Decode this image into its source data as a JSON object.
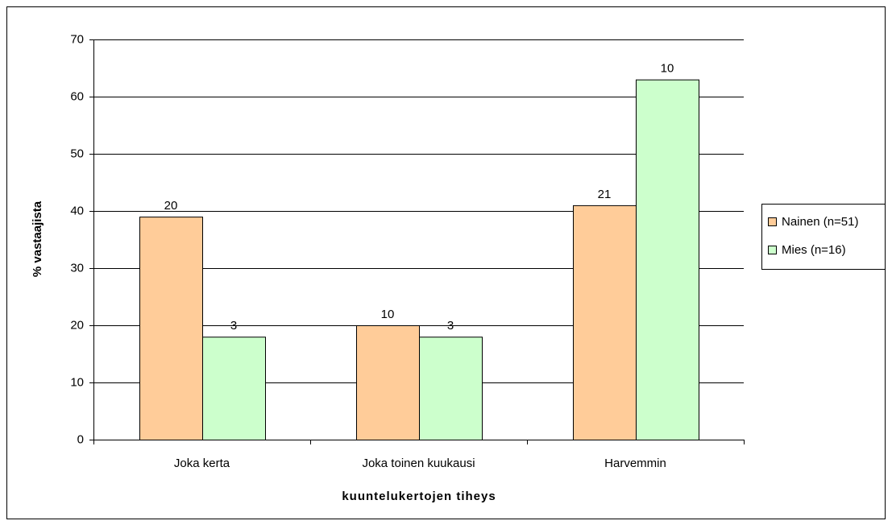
{
  "chart_data": {
    "type": "bar",
    "y_label": "% vastaajista",
    "x_label": "kuuntelukertojen tiheys",
    "categories": [
      "Joka kerta",
      "Joka toinen kuukausi",
      "Harvemmin"
    ],
    "series": [
      {
        "name": "Nainen (n=51)",
        "color": "#ffcc99",
        "values": [
          39,
          20,
          41
        ],
        "counts": [
          20,
          10,
          21
        ]
      },
      {
        "name": "Mies (n=16)",
        "color": "#ccffcc",
        "values": [
          18,
          18,
          63
        ],
        "counts": [
          3,
          3,
          10
        ]
      }
    ],
    "ylim": [
      0,
      70
    ],
    "yticks": [
      0,
      10,
      20,
      30,
      40,
      50,
      60,
      70
    ],
    "grid": true,
    "legend": "right"
  }
}
